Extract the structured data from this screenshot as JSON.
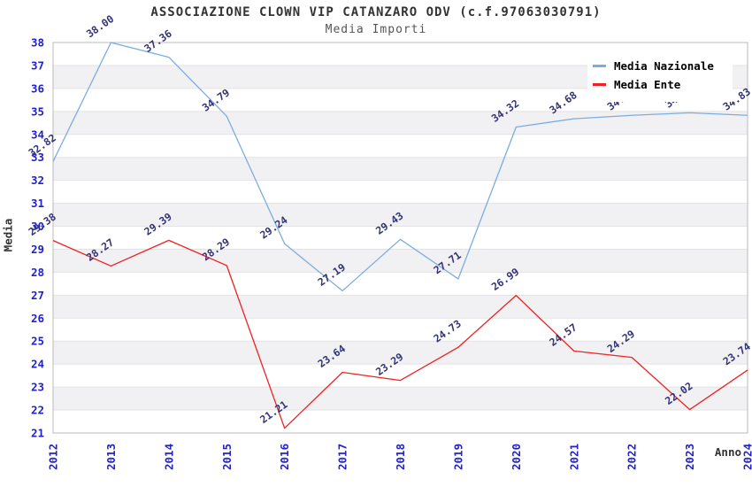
{
  "page": {
    "background": "#ffffff"
  },
  "chart_data": {
    "type": "line",
    "title": "ASSOCIAZIONE CLOWN VIP CATANZARO ODV (c.f.97063030791)",
    "subtitle": "Media Importi",
    "xlabel": "Anno",
    "ylabel": "Media",
    "categories": [
      "2012",
      "2013",
      "2014",
      "2015",
      "2016",
      "2017",
      "2018",
      "2019",
      "2020",
      "2021",
      "2022",
      "2023",
      "2024"
    ],
    "ylim": [
      21,
      38
    ],
    "y_tick_step": 1,
    "grid": "horizontal-bands",
    "legend_position": "top-right",
    "series": [
      {
        "name": "Media Nazionale",
        "color": "#7cacdf",
        "values": [
          32.82,
          38.0,
          37.36,
          34.79,
          29.24,
          27.19,
          29.43,
          27.71,
          34.32,
          34.68,
          34.83,
          34.94,
          34.83
        ],
        "point_labels": [
          "32.82",
          "38.00",
          "37.36",
          "34.79",
          "29.24",
          "27.19",
          "29.43",
          "27.71",
          "34.32",
          "34.68",
          "34.83",
          "34.94",
          "34.83"
        ]
      },
      {
        "name": "Media Ente",
        "color": "#ee2222",
        "values": [
          29.38,
          28.27,
          29.39,
          28.29,
          21.21,
          23.64,
          23.29,
          24.73,
          26.99,
          24.57,
          24.29,
          22.02,
          23.74
        ],
        "point_labels": [
          "29.38",
          "28.27",
          "29.39",
          "28.29",
          "21.21",
          "23.64",
          "23.29",
          "24.73",
          "26.99",
          "24.57",
          "24.29",
          "22.02",
          "23.74"
        ]
      }
    ],
    "colors": {
      "title": "#333333",
      "subtitle": "#555555",
      "axis_title": "#333333",
      "tick_label": "#2222cc",
      "data_label": "#333377",
      "band": "#f1f1f4",
      "gridline": "#e3e3e3",
      "plot_border": "#bbbbbb",
      "background": "#ffffff"
    }
  }
}
